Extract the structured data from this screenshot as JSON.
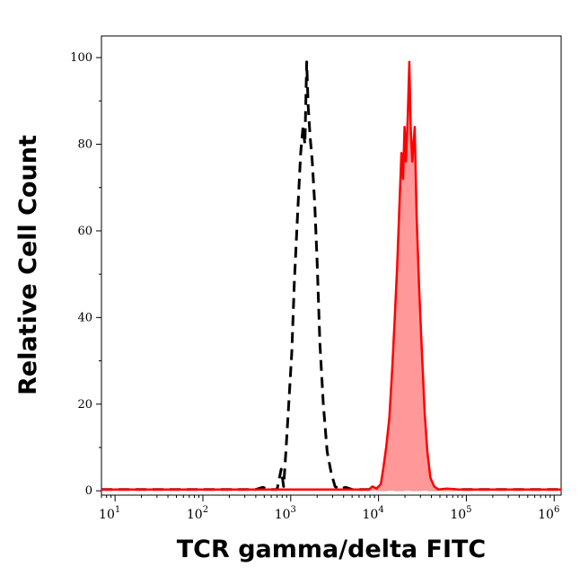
{
  "chart_data": {
    "type": "area",
    "xlabel": "TCR gamma/delta FITC",
    "ylabel": "Relative Cell Count",
    "xscale": "log",
    "xlim": [
      7,
      1200000
    ],
    "ylim": [
      -1,
      105
    ],
    "grid": false,
    "y_ticks": [
      {
        "value": 0,
        "label": "0"
      },
      {
        "value": 20,
        "label": "20"
      },
      {
        "value": 40,
        "label": "40"
      },
      {
        "value": 60,
        "label": "60"
      },
      {
        "value": 80,
        "label": "80"
      },
      {
        "value": 100,
        "label": "100"
      }
    ],
    "x_ticks": [
      {
        "value": 10,
        "base": "10",
        "exp": "1"
      },
      {
        "value": 100,
        "base": "10",
        "exp": "2"
      },
      {
        "value": 1000,
        "base": "10",
        "exp": "3"
      },
      {
        "value": 10000,
        "base": "10",
        "exp": "4"
      },
      {
        "value": 100000,
        "base": "10",
        "exp": "5"
      },
      {
        "value": 1000000,
        "base": "10",
        "exp": "6"
      }
    ],
    "series": [
      {
        "style": "dashed",
        "color": "#000000",
        "filled": false,
        "points": [
          [
            7,
            0.3
          ],
          [
            400,
            0.3
          ],
          [
            480,
            0.8
          ],
          [
            560,
            0.3
          ],
          [
            700,
            0.3
          ],
          [
            780,
            5
          ],
          [
            830,
            1
          ],
          [
            880,
            9
          ],
          [
            950,
            20
          ],
          [
            1030,
            32
          ],
          [
            1100,
            48
          ],
          [
            1200,
            64
          ],
          [
            1300,
            78
          ],
          [
            1380,
            84
          ],
          [
            1450,
            80
          ],
          [
            1520,
            99
          ],
          [
            1580,
            89
          ],
          [
            1660,
            82
          ],
          [
            1760,
            76
          ],
          [
            1880,
            66
          ],
          [
            2000,
            53
          ],
          [
            2150,
            34
          ],
          [
            2350,
            20
          ],
          [
            2600,
            9
          ],
          [
            2900,
            4
          ],
          [
            3200,
            1
          ],
          [
            3600,
            0.3
          ],
          [
            4200,
            0.8
          ],
          [
            5000,
            0.3
          ],
          [
            7000,
            0.3
          ],
          [
            1200000,
            0.3
          ]
        ]
      },
      {
        "style": "solid",
        "color": "#ff0000",
        "fill": "#ff9999",
        "filled": true,
        "points": [
          [
            7,
            0.3
          ],
          [
            7800,
            0.3
          ],
          [
            8500,
            1
          ],
          [
            9500,
            0.5
          ],
          [
            10600,
            1.5
          ],
          [
            11300,
            5
          ],
          [
            12200,
            10
          ],
          [
            13300,
            17
          ],
          [
            14300,
            28
          ],
          [
            15300,
            40
          ],
          [
            16300,
            52
          ],
          [
            17300,
            66
          ],
          [
            18200,
            78
          ],
          [
            19000,
            72
          ],
          [
            19800,
            84
          ],
          [
            20500,
            76
          ],
          [
            21500,
            86
          ],
          [
            22400,
            99
          ],
          [
            23200,
            84
          ],
          [
            24200,
            76
          ],
          [
            25800,
            84
          ],
          [
            27200,
            63
          ],
          [
            29000,
            47
          ],
          [
            31000,
            33
          ],
          [
            33500,
            18
          ],
          [
            36000,
            9
          ],
          [
            39000,
            3
          ],
          [
            43000,
            1
          ],
          [
            48000,
            0.3
          ],
          [
            60000,
            0.5
          ],
          [
            80000,
            0.3
          ],
          [
            1200000,
            0.3
          ]
        ]
      }
    ]
  }
}
